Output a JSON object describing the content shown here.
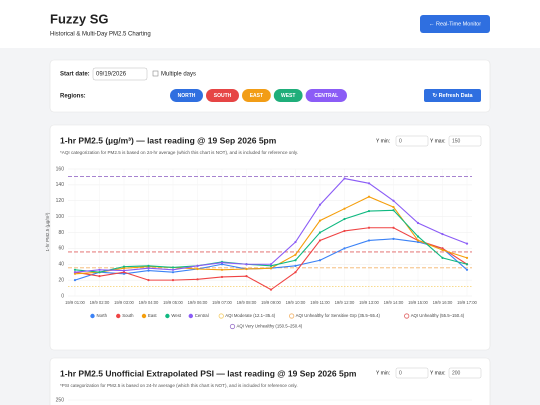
{
  "header": {
    "title": "Fuzzy SG",
    "subtitle": "Historical & Multi-Day PM2.5 Charting",
    "button": "← Real-Time Monitor"
  },
  "controls": {
    "start_label": "Start date:",
    "date": "09/19/2026",
    "multiple_days": "Multiple days",
    "regions_label": "Regions:",
    "regions": [
      {
        "label": "NORTH",
        "color": "#2f6fe0"
      },
      {
        "label": "SOUTH",
        "color": "#e64545"
      },
      {
        "label": "EAST",
        "color": "#f29d16"
      },
      {
        "label": "WEST",
        "color": "#1fae7a"
      },
      {
        "label": "CENTRAL",
        "color": "#8b5cf6"
      }
    ],
    "refresh": "↻ Refresh Data"
  },
  "panel1": {
    "ymin_label": "Y min:",
    "ymin": "0",
    "ymax_label": "Y max:",
    "ymax": "150"
  },
  "chart_data": {
    "type": "line",
    "title": "1-hr PM2.5 (µg/m³) — last reading @ 19 Sep 2026 5pm",
    "subtitle": "*AQI categorization for PM2.5 is based on 24-hr average (which this chart is NOT), and is included for reference only.",
    "y_label": "1-hr PM2.5 (µg/m³)",
    "categories": [
      "19/9 01:00",
      "19/9 02:00",
      "19/9 03:00",
      "19/9 04:00",
      "19/9 05:00",
      "19/9 06:00",
      "19/9 07:00",
      "19/9 08:00",
      "19/9 09:00",
      "19/9 10:00",
      "19/9 11:00",
      "19/9 12:00",
      "19/9 13:00",
      "19/9 14:00",
      "19/9 15:00",
      "19/9 16:00",
      "19/9 17:00"
    ],
    "series": [
      {
        "name": "North",
        "color": "#3b82f6",
        "values": [
          20,
          30,
          28,
          32,
          30,
          34,
          40,
          34,
          35,
          38,
          45,
          60,
          70,
          72,
          68,
          60,
          33
        ]
      },
      {
        "name": "South",
        "color": "#ef4444",
        "values": [
          30,
          25,
          30,
          20,
          20,
          21,
          24,
          25,
          8,
          30,
          70,
          82,
          86,
          86,
          70,
          60,
          40
        ]
      },
      {
        "name": "East",
        "color": "#f59e0b",
        "values": [
          28,
          30,
          35,
          37,
          36,
          34,
          33,
          34,
          35,
          52,
          95,
          110,
          125,
          112,
          70,
          58,
          48
        ]
      },
      {
        "name": "West",
        "color": "#10b981",
        "values": [
          33,
          30,
          37,
          38,
          36,
          38,
          43,
          40,
          38,
          45,
          80,
          97,
          107,
          108,
          75,
          48,
          40
        ]
      },
      {
        "name": "Central",
        "color": "#8b5cf6",
        "values": [
          30,
          33,
          32,
          35,
          33,
          38,
          42,
          40,
          40,
          68,
          115,
          148,
          142,
          120,
          92,
          78,
          66
        ]
      }
    ],
    "thresholds": [
      {
        "name": "AQI Moderate (12.1–35.4)",
        "color": "#f5cf6a",
        "value": 12.1
      },
      {
        "name": "AQI Unhealthy for Sensitive Grp (35.5–55.4)",
        "color": "#f4b46a",
        "value": 35.5
      },
      {
        "name": "AQI Unhealthy (55.5–150.4)",
        "color": "#e06060",
        "value": 55.5
      },
      {
        "name": "AQI Very Unhealthy (150.5–250.4)",
        "color": "#9a72c9",
        "value": 150.5
      }
    ],
    "ylim": [
      0,
      160
    ],
    "yticks": [
      0,
      20,
      40,
      60,
      80,
      100,
      120,
      140,
      160
    ],
    "grid": true,
    "legend": "bottom"
  },
  "panel2": {
    "title": "1-hr PM2.5 Unofficial Extrapolated PSI — last reading @ 19 Sep 2026 5pm",
    "note": "*PSI categorization for PM2.5 is based on 24-hr average (which this chart is NOT), and is included for reference only.",
    "ymin_label": "Y min:",
    "ymin": "0",
    "ymax_label": "Y max:",
    "ymax": "200",
    "top_tick": "250"
  }
}
